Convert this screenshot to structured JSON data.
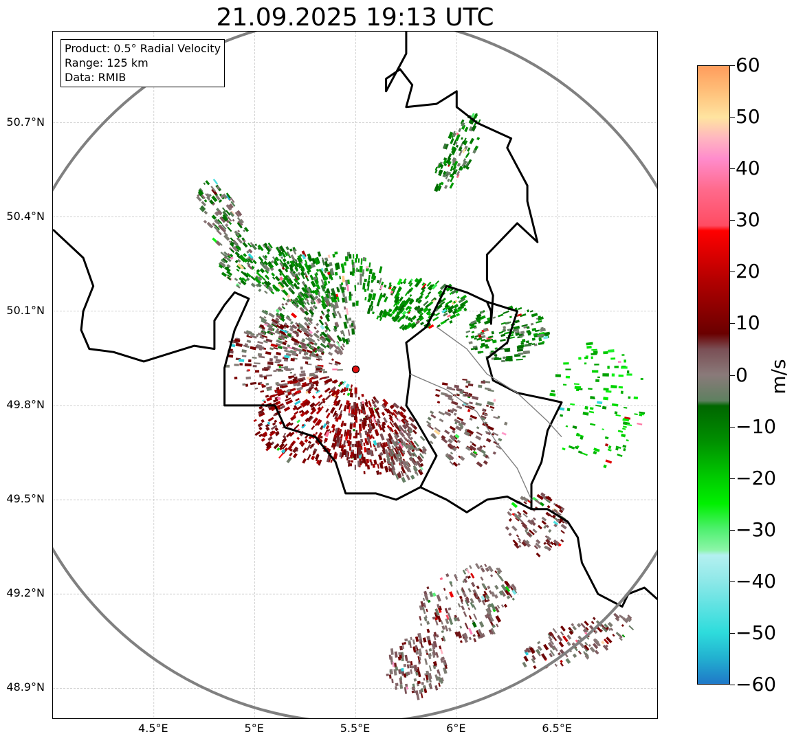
{
  "map": {
    "title": "21.09.2025 19:13 UTC",
    "info": [
      "Product: 0.5° Radial Velocity",
      "Range: 125 km",
      "Data: RMIB"
    ],
    "lon_range": [
      4.0,
      7.0
    ],
    "lat_range": [
      48.8,
      50.99
    ],
    "radar_site": {
      "lon": 5.5,
      "lat": 49.915
    },
    "range_km": 125,
    "lat_ticks": [
      {
        "value": 50.7,
        "label": "50.7°N"
      },
      {
        "value": 50.4,
        "label": "50.4°N"
      },
      {
        "value": 50.1,
        "label": "50.1°N"
      },
      {
        "value": 49.8,
        "label": "49.8°N"
      },
      {
        "value": 49.5,
        "label": "49.5°N"
      },
      {
        "value": 49.2,
        "label": "49.2°N"
      },
      {
        "value": 48.9,
        "label": "48.9°N"
      }
    ],
    "lon_ticks": [
      {
        "value": 4.5,
        "label": "4.5°E"
      },
      {
        "value": 5.0,
        "label": "5°E"
      },
      {
        "value": 5.5,
        "label": "5.5°E"
      },
      {
        "value": 6.0,
        "label": "6°E"
      },
      {
        "value": 6.5,
        "label": "6.5°E"
      }
    ],
    "grid": true,
    "colors": {
      "range_ring": "#808080",
      "border": "#000000",
      "site": "#e01010"
    }
  },
  "colorbar": {
    "unit": "m/s",
    "min": -60,
    "max": 60,
    "ticks": [
      {
        "value": 60,
        "label": "60"
      },
      {
        "value": 50,
        "label": "50"
      },
      {
        "value": 40,
        "label": "40"
      },
      {
        "value": 30,
        "label": "30"
      },
      {
        "value": 20,
        "label": "20"
      },
      {
        "value": 10,
        "label": "10"
      },
      {
        "value": 0,
        "label": "0"
      },
      {
        "value": -10,
        "label": "−10"
      },
      {
        "value": -20,
        "label": "−20"
      },
      {
        "value": -30,
        "label": "−30"
      },
      {
        "value": -40,
        "label": "−40"
      },
      {
        "value": -50,
        "label": "−50"
      },
      {
        "value": -60,
        "label": "−60"
      }
    ],
    "stops": [
      {
        "v": -60,
        "c": "#1f78c8"
      },
      {
        "v": -55,
        "c": "#22b0d0"
      },
      {
        "v": -50,
        "c": "#2edcdc"
      },
      {
        "v": -40,
        "c": "#8ee8e8"
      },
      {
        "v": -35,
        "c": "#b4f0f0"
      },
      {
        "v": -34,
        "c": "#8cf5a8"
      },
      {
        "v": -30,
        "c": "#50f070"
      },
      {
        "v": -25,
        "c": "#00f000"
      },
      {
        "v": -20,
        "c": "#00cc00"
      },
      {
        "v": -13,
        "c": "#009000"
      },
      {
        "v": -6,
        "c": "#006600"
      },
      {
        "v": -5,
        "c": "#5e8060"
      },
      {
        "v": 0,
        "c": "#8a7a7a"
      },
      {
        "v": 5,
        "c": "#7a4f55"
      },
      {
        "v": 8,
        "c": "#6a0000"
      },
      {
        "v": 18,
        "c": "#b00000"
      },
      {
        "v": 28,
        "c": "#ff0000"
      },
      {
        "v": 29,
        "c": "#ff4c62"
      },
      {
        "v": 36,
        "c": "#ff6a8c"
      },
      {
        "v": 42,
        "c": "#ff8ccc"
      },
      {
        "v": 46,
        "c": "#ffb6c0"
      },
      {
        "v": 50,
        "c": "#ffe4a0"
      },
      {
        "v": 55,
        "c": "#ffc07a"
      },
      {
        "v": 60,
        "c": "#ff9c5c"
      }
    ]
  },
  "echo_regions": [
    {
      "lon": 4.85,
      "lat": 50.38,
      "rx": 0.09,
      "ry": 0.16,
      "rot": -25,
      "v": -3,
      "n": 120
    },
    {
      "lon": 5.05,
      "lat": 50.24,
      "rx": 0.22,
      "ry": 0.08,
      "rot": 0,
      "v": -8,
      "n": 160
    },
    {
      "lon": 5.35,
      "lat": 50.2,
      "rx": 0.3,
      "ry": 0.09,
      "rot": 0,
      "v": -9,
      "n": 260
    },
    {
      "lon": 5.8,
      "lat": 50.12,
      "rx": 0.25,
      "ry": 0.08,
      "rot": 0,
      "v": -12,
      "n": 220
    },
    {
      "lon": 6.25,
      "lat": 50.03,
      "rx": 0.2,
      "ry": 0.09,
      "rot": 0,
      "v": -9,
      "n": 160
    },
    {
      "lon": 5.25,
      "lat": 50.05,
      "rx": 0.25,
      "ry": 0.1,
      "rot": 0,
      "v": -3,
      "n": 200
    },
    {
      "lon": 5.15,
      "lat": 49.95,
      "rx": 0.3,
      "ry": 0.12,
      "rot": 0,
      "v": 4,
      "n": 260
    },
    {
      "lon": 5.3,
      "lat": 49.75,
      "rx": 0.3,
      "ry": 0.14,
      "rot": 0,
      "v": 12,
      "n": 360
    },
    {
      "lon": 5.6,
      "lat": 49.7,
      "rx": 0.2,
      "ry": 0.12,
      "rot": 0,
      "v": 10,
      "n": 260
    },
    {
      "lon": 5.75,
      "lat": 49.65,
      "rx": 0.1,
      "ry": 0.09,
      "rot": 0,
      "v": 2,
      "n": 120
    },
    {
      "lon": 6.05,
      "lat": 49.75,
      "rx": 0.2,
      "ry": 0.15,
      "rot": 0,
      "v": 3,
      "n": 160
    },
    {
      "lon": 6.0,
      "lat": 50.6,
      "rx": 0.08,
      "ry": 0.14,
      "rot": 25,
      "v": -8,
      "n": 110
    },
    {
      "lon": 6.4,
      "lat": 49.42,
      "rx": 0.15,
      "ry": 0.1,
      "rot": -30,
      "v": 3,
      "n": 110
    },
    {
      "lon": 6.05,
      "lat": 49.17,
      "rx": 0.25,
      "ry": 0.12,
      "rot": -20,
      "v": 2,
      "n": 200
    },
    {
      "lon": 5.8,
      "lat": 48.97,
      "rx": 0.15,
      "ry": 0.1,
      "rot": 0,
      "v": 3,
      "n": 150
    },
    {
      "lon": 6.6,
      "lat": 49.05,
      "rx": 0.3,
      "ry": 0.06,
      "rot": -20,
      "v": 3,
      "n": 130
    },
    {
      "lon": 6.7,
      "lat": 49.8,
      "rx": 0.25,
      "ry": 0.2,
      "rot": 0,
      "v": -20,
      "n": 110
    }
  ],
  "borders": [
    {
      "name": "belgium-border",
      "width": 3,
      "color": "#000000",
      "points": [
        [
          4.0,
          50.36
        ],
        [
          4.1,
          50.3
        ],
        [
          4.15,
          50.27
        ],
        [
          4.2,
          50.18
        ],
        [
          4.15,
          50.1
        ],
        [
          4.14,
          50.04
        ],
        [
          4.18,
          49.98
        ],
        [
          4.3,
          49.97
        ],
        [
          4.45,
          49.94
        ],
        [
          4.6,
          49.97
        ],
        [
          4.7,
          49.99
        ],
        [
          4.8,
          49.98
        ],
        [
          4.8,
          50.07
        ],
        [
          4.85,
          50.12
        ],
        [
          4.9,
          50.16
        ],
        [
          4.97,
          50.14
        ],
        [
          4.9,
          50.04
        ],
        [
          4.85,
          49.92
        ],
        [
          4.85,
          49.8
        ],
        [
          5.0,
          49.8
        ],
        [
          5.1,
          49.8
        ],
        [
          5.15,
          49.73
        ],
        [
          5.3,
          49.7
        ],
        [
          5.4,
          49.62
        ],
        [
          5.45,
          49.52
        ],
        [
          5.6,
          49.52
        ],
        [
          5.7,
          49.5
        ],
        [
          5.82,
          49.54
        ],
        [
          5.9,
          49.64
        ],
        [
          5.8,
          49.75
        ],
        [
          5.75,
          49.8
        ],
        [
          5.77,
          49.9
        ],
        [
          5.75,
          50.0
        ],
        [
          5.85,
          50.05
        ],
        [
          5.95,
          50.18
        ],
        [
          6.05,
          50.16
        ],
        [
          6.15,
          50.13
        ],
        [
          6.17,
          50.1
        ],
        [
          6.17,
          50.06
        ],
        [
          6.18,
          50.15
        ],
        [
          6.15,
          50.2
        ],
        [
          6.15,
          50.28
        ],
        [
          6.3,
          50.38
        ],
        [
          6.4,
          50.32
        ],
        [
          6.35,
          50.45
        ],
        [
          6.35,
          50.5
        ],
        [
          6.25,
          50.62
        ],
        [
          6.27,
          50.65
        ],
        [
          6.1,
          50.7
        ],
        [
          6.0,
          50.75
        ],
        [
          6.0,
          50.8
        ],
        [
          5.9,
          50.76
        ],
        [
          5.75,
          50.75
        ],
        [
          5.78,
          50.82
        ],
        [
          5.72,
          50.87
        ],
        [
          5.65,
          50.84
        ],
        [
          5.65,
          50.8
        ],
        [
          5.75,
          50.92
        ],
        [
          5.75,
          50.99
        ]
      ]
    },
    {
      "name": "luxembourg-germany-border",
      "width": 3,
      "color": "#000000",
      "points": [
        [
          6.15,
          50.13
        ],
        [
          6.3,
          50.1
        ],
        [
          6.25,
          50.0
        ],
        [
          6.15,
          49.95
        ],
        [
          6.18,
          49.88
        ],
        [
          6.3,
          49.84
        ],
        [
          6.45,
          49.82
        ],
        [
          6.52,
          49.81
        ],
        [
          6.45,
          49.72
        ],
        [
          6.42,
          49.62
        ],
        [
          6.37,
          49.55
        ],
        [
          6.37,
          49.47
        ],
        [
          6.45,
          49.47
        ],
        [
          6.55,
          49.43
        ],
        [
          6.6,
          49.38
        ],
        [
          6.62,
          49.3
        ],
        [
          6.7,
          49.2
        ],
        [
          6.82,
          49.16
        ],
        [
          6.85,
          49.2
        ],
        [
          6.93,
          49.22
        ],
        [
          7.0,
          49.18
        ]
      ]
    },
    {
      "name": "luxembourg-france-border",
      "width": 3,
      "color": "#000000",
      "points": [
        [
          5.82,
          49.54
        ],
        [
          5.95,
          49.5
        ],
        [
          6.05,
          49.46
        ],
        [
          6.15,
          49.5
        ],
        [
          6.25,
          49.51
        ],
        [
          6.37,
          49.47
        ]
      ]
    },
    {
      "name": "river-moselle",
      "width": 1.4,
      "color": "#808080",
      "points": [
        [
          5.77,
          49.9
        ],
        [
          5.95,
          49.85
        ],
        [
          6.1,
          49.78
        ],
        [
          6.2,
          49.68
        ],
        [
          6.3,
          49.6
        ],
        [
          6.37,
          49.5
        ]
      ]
    },
    {
      "name": "river-sauer",
      "width": 1.4,
      "color": "#808080",
      "points": [
        [
          5.9,
          50.05
        ],
        [
          6.05,
          49.98
        ],
        [
          6.15,
          49.9
        ],
        [
          6.3,
          49.84
        ],
        [
          6.45,
          49.75
        ],
        [
          6.52,
          49.7
        ]
      ]
    }
  ]
}
